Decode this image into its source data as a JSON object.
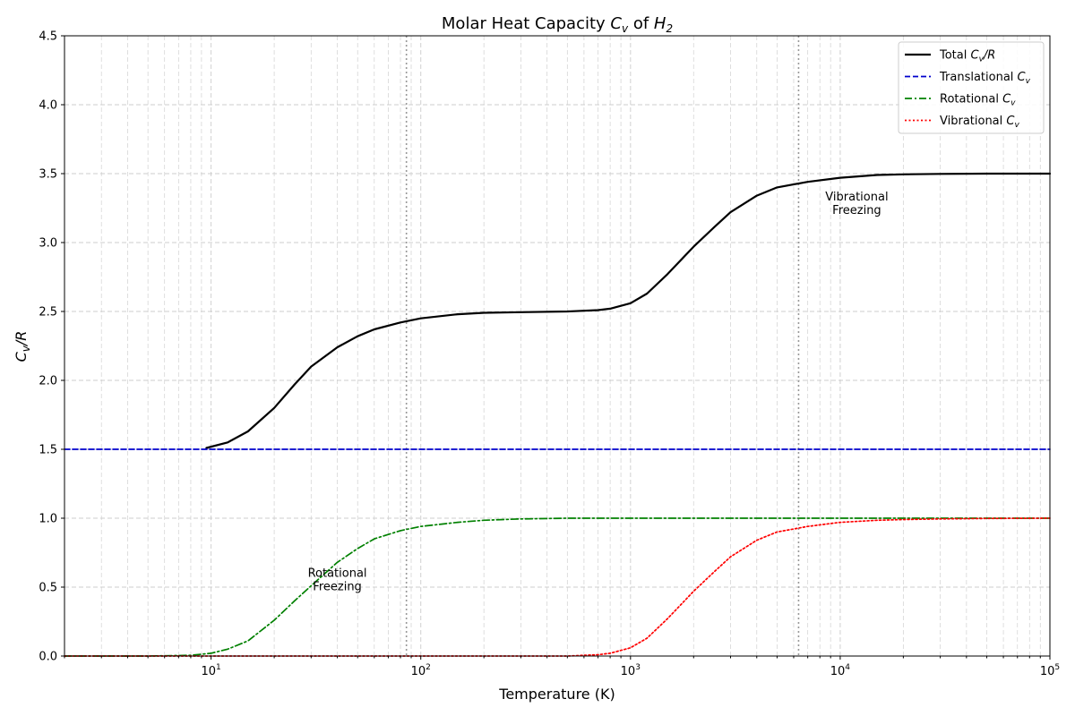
{
  "chart_data": {
    "type": "line",
    "title": "Molar Heat Capacity C_v of H_2",
    "title_parts": {
      "prefix": "Molar Heat Capacity ",
      "sym1": "C",
      "sub1": "v",
      "middle": " of ",
      "sym2": "H",
      "sub2": "2"
    },
    "xlabel": "Temperature (K)",
    "ylabel": "C_v/R",
    "ylabel_parts": {
      "sym": "C",
      "sub": "v",
      "suffix": "/R"
    },
    "xscale": "log",
    "xlim": [
      2,
      100000
    ],
    "ylim": [
      0,
      4.5
    ],
    "x_ticks": [
      {
        "value": 10,
        "base": "10",
        "exp": "1"
      },
      {
        "value": 100,
        "base": "10",
        "exp": "2"
      },
      {
        "value": 1000,
        "base": "10",
        "exp": "3"
      },
      {
        "value": 10000,
        "base": "10",
        "exp": "4"
      },
      {
        "value": 100000,
        "base": "10",
        "exp": "5"
      }
    ],
    "y_ticks": [
      "0.0",
      "0.5",
      "1.0",
      "1.5",
      "2.0",
      "2.5",
      "3.0",
      "3.5",
      "4.0",
      "4.5"
    ],
    "grid": true,
    "legend_position": "top-right",
    "series": [
      {
        "name": "Total C_v/R",
        "legend_parts": {
          "prefix": "Total ",
          "sym": "C",
          "sub": "v",
          "suffix": "/R"
        },
        "color": "#000000",
        "style": "solid",
        "x": [
          9.5,
          12,
          15,
          20,
          25,
          30,
          40,
          50,
          60,
          80,
          100,
          150,
          200,
          300,
          500,
          700,
          800,
          1000,
          1200,
          1500,
          2000,
          2500,
          3000,
          4000,
          5000,
          7000,
          10000,
          15000,
          20000,
          30000,
          50000,
          100000
        ],
        "y": [
          1.51,
          1.55,
          1.63,
          1.8,
          1.97,
          2.1,
          2.24,
          2.32,
          2.37,
          2.42,
          2.45,
          2.48,
          2.49,
          2.495,
          2.5,
          2.51,
          2.52,
          2.56,
          2.63,
          2.77,
          2.97,
          3.11,
          3.22,
          3.34,
          3.4,
          3.44,
          3.47,
          3.49,
          3.495,
          3.498,
          3.5,
          3.5
        ]
      },
      {
        "name": "Translational C_v",
        "legend_parts": {
          "prefix": "Translational ",
          "sym": "C",
          "sub": "v",
          "suffix": ""
        },
        "color": "#0000cc",
        "style": "dashed",
        "x": [
          2,
          100000
        ],
        "y": [
          1.5,
          1.5
        ]
      },
      {
        "name": "Rotational C_v",
        "legend_parts": {
          "prefix": "Rotational ",
          "sym": "C",
          "sub": "v",
          "suffix": ""
        },
        "color": "#008000",
        "style": "dashdot",
        "x": [
          2,
          5,
          8,
          10,
          12,
          15,
          20,
          25,
          30,
          40,
          50,
          60,
          80,
          100,
          150,
          200,
          300,
          500,
          1000,
          10000,
          100000
        ],
        "y": [
          0.0,
          0.0,
          0.005,
          0.02,
          0.05,
          0.11,
          0.26,
          0.4,
          0.51,
          0.68,
          0.78,
          0.85,
          0.91,
          0.94,
          0.97,
          0.985,
          0.995,
          1.0,
          1.0,
          1.0,
          1.0
        ]
      },
      {
        "name": "Vibrational C_v",
        "legend_parts": {
          "prefix": "Vibrational ",
          "sym": "C",
          "sub": "v",
          "suffix": ""
        },
        "color": "#ff0000",
        "style": "dotted",
        "x": [
          2,
          100,
          500,
          700,
          800,
          1000,
          1200,
          1500,
          2000,
          2500,
          3000,
          4000,
          5000,
          7000,
          10000,
          15000,
          20000,
          30000,
          50000,
          100000
        ],
        "y": [
          0.0,
          0.0,
          0.0,
          0.01,
          0.02,
          0.06,
          0.13,
          0.27,
          0.47,
          0.61,
          0.72,
          0.84,
          0.9,
          0.94,
          0.97,
          0.985,
          0.99,
          0.995,
          0.998,
          1.0
        ]
      }
    ],
    "vertical_markers": [
      85.4,
      6332
    ],
    "annotations": [
      {
        "text_lines": [
          "Rotational",
          "Freezing"
        ],
        "x": 40,
        "y": 0.55
      },
      {
        "text_lines": [
          "Vibrational",
          "Freezing"
        ],
        "x": 12000,
        "y": 3.28
      }
    ]
  }
}
